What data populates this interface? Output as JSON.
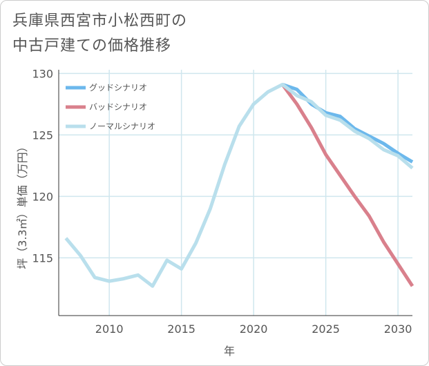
{
  "title": {
    "line1": "兵庫県西宮市小松西町の",
    "line2": "中古戸建ての価格推移"
  },
  "colors": {
    "good": "#6cb8ec",
    "bad": "#d9808c",
    "normal": "#b9dfec",
    "grid": "#cfe6ee",
    "axis": "#333333",
    "text": "#555555"
  },
  "chart_data": {
    "type": "line",
    "title": "兵庫県西宮市小松西町の中古戸建ての価格推移",
    "xlabel": "年",
    "ylabel": "坪（3.3㎡）単価（万円）",
    "xlim": [
      2006.5,
      2031
    ],
    "ylim": [
      110.3,
      130.3
    ],
    "xticks": [
      2010,
      2015,
      2020,
      2025,
      2030
    ],
    "yticks": [
      115,
      120,
      125,
      130
    ],
    "legend_position": "top-left",
    "series": [
      {
        "name": "グッドシナリオ",
        "key": "good",
        "x": [
          2022,
          2023,
          2024,
          2025,
          2026,
          2027,
          2028,
          2029,
          2030,
          2031
        ],
        "values": [
          129.1,
          128.7,
          127.5,
          126.8,
          126.5,
          125.5,
          124.9,
          124.3,
          123.5,
          122.8
        ]
      },
      {
        "name": "バッドシナリオ",
        "key": "bad",
        "x": [
          2022,
          2023,
          2024,
          2025,
          2026,
          2027,
          2028,
          2029,
          2030,
          2031
        ],
        "values": [
          129.1,
          127.5,
          125.6,
          123.4,
          121.7,
          120.0,
          118.4,
          116.3,
          114.5,
          112.7
        ]
      },
      {
        "name": "ノーマルシナリオ",
        "key": "normal",
        "x": [
          2007,
          2008,
          2009,
          2010,
          2011,
          2012,
          2013,
          2014,
          2015,
          2016,
          2017,
          2018,
          2019,
          2020,
          2021,
          2022,
          2023,
          2024,
          2025,
          2026,
          2027,
          2028,
          2029,
          2030,
          2031
        ],
        "values": [
          116.6,
          115.2,
          113.4,
          113.1,
          113.3,
          113.6,
          112.7,
          114.8,
          114.1,
          116.2,
          119.0,
          122.6,
          125.7,
          127.5,
          128.5,
          129.1,
          128.2,
          127.7,
          126.6,
          126.2,
          125.3,
          124.7,
          123.8,
          123.3,
          122.3
        ]
      }
    ]
  }
}
